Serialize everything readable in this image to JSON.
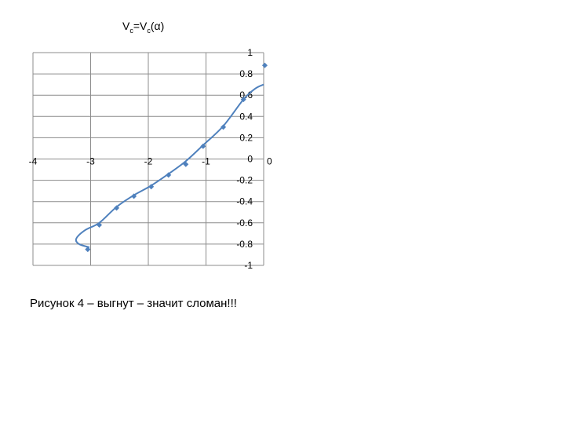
{
  "caption": "Рисунок 4 – выгнут – значит сломан!!!",
  "chart_data": {
    "type": "scatter",
    "title": {
      "main": "V",
      "sub1": "c",
      "eq": "=V",
      "sub2": "c",
      "arg": "(α)"
    },
    "xlim": [
      -4,
      0
    ],
    "ylim": [
      -1,
      1
    ],
    "grid": true,
    "x_ticks": [
      -4,
      -3,
      -2,
      -1,
      0
    ],
    "x_tick_labels": [
      "-4",
      "-3",
      "-2",
      "-1",
      "0"
    ],
    "y_ticks": [
      1,
      0.8,
      0.6,
      0.4,
      0.2,
      0,
      -0.2,
      -0.4,
      -0.6,
      -0.8,
      -1
    ],
    "y_tick_labels": [
      "1",
      "0.8",
      "0.6",
      "0.4",
      "0.2",
      "0",
      "-0.2",
      "-0.4",
      "-0.6",
      "-0.8",
      "-1"
    ],
    "series_color": "#4f81bd",
    "markers": [
      {
        "x": -3.05,
        "y": -0.85
      },
      {
        "x": -2.85,
        "y": -0.62
      },
      {
        "x": -2.55,
        "y": -0.46
      },
      {
        "x": -2.25,
        "y": -0.35
      },
      {
        "x": -1.95,
        "y": -0.26
      },
      {
        "x": -1.65,
        "y": -0.15
      },
      {
        "x": -1.35,
        "y": -0.05
      },
      {
        "x": -1.05,
        "y": 0.12
      },
      {
        "x": -0.7,
        "y": 0.3
      },
      {
        "x": -0.35,
        "y": 0.56
      },
      {
        "x": 0.02,
        "y": 0.88
      }
    ],
    "curve": [
      {
        "x": -3.02,
        "y": -0.83
      },
      {
        "x": -3.2,
        "y": -0.8
      },
      {
        "x": -3.25,
        "y": -0.75
      },
      {
        "x": -3.1,
        "y": -0.67
      },
      {
        "x": -2.85,
        "y": -0.6
      },
      {
        "x": -2.55,
        "y": -0.45
      },
      {
        "x": -2.25,
        "y": -0.34
      },
      {
        "x": -1.95,
        "y": -0.25
      },
      {
        "x": -1.65,
        "y": -0.14
      },
      {
        "x": -1.35,
        "y": -0.02
      },
      {
        "x": -1.05,
        "y": 0.13
      },
      {
        "x": -0.7,
        "y": 0.31
      },
      {
        "x": -0.35,
        "y": 0.56
      },
      {
        "x": -0.15,
        "y": 0.66
      },
      {
        "x": 0.0,
        "y": 0.7
      }
    ]
  }
}
